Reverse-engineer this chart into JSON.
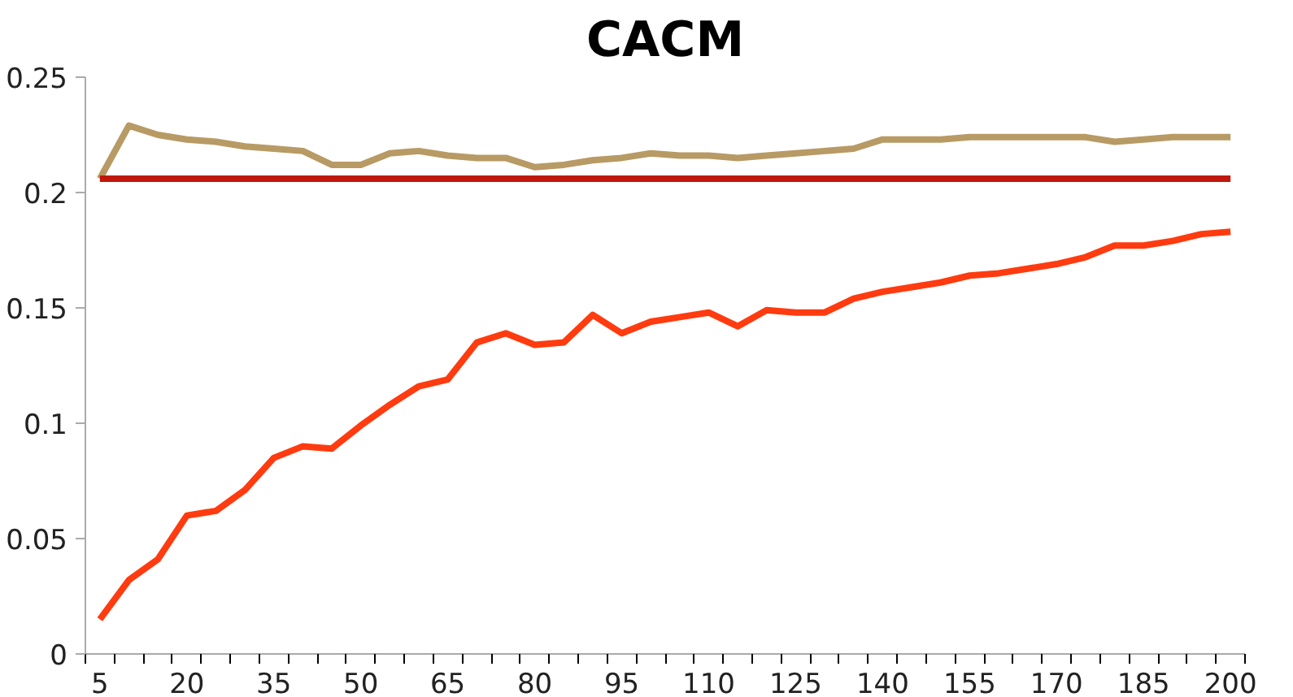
{
  "chart_data": {
    "type": "line",
    "title": "CACM",
    "categories": [
      "5",
      null,
      null,
      "20",
      null,
      null,
      "35",
      null,
      null,
      "50",
      null,
      null,
      "65",
      null,
      null,
      "80",
      null,
      null,
      "95",
      null,
      null,
      "110",
      null,
      null,
      "125",
      null,
      null,
      "140",
      null,
      null,
      "155",
      null,
      null,
      "170",
      null,
      null,
      "185",
      null,
      null,
      "200"
    ],
    "series": [
      {
        "color": "#b89a64",
        "values": [
          0.206,
          0.229,
          0.225,
          0.223,
          0.222,
          0.22,
          0.219,
          0.218,
          0.212,
          0.212,
          0.217,
          0.218,
          0.216,
          0.215,
          0.215,
          0.211,
          0.212,
          0.214,
          0.215,
          0.217,
          0.216,
          0.216,
          0.215,
          0.216,
          0.217,
          0.218,
          0.219,
          0.223,
          0.223,
          0.223,
          0.224,
          0.224,
          0.224,
          0.224,
          0.224,
          0.222,
          0.223,
          0.224,
          0.224,
          0.224
        ]
      },
      {
        "color": "#c0180c",
        "values": [
          0.206,
          0.206,
          0.206,
          0.206,
          0.206,
          0.206,
          0.206,
          0.206,
          0.206,
          0.206,
          0.206,
          0.206,
          0.206,
          0.206,
          0.206,
          0.206,
          0.206,
          0.206,
          0.206,
          0.206,
          0.206,
          0.206,
          0.206,
          0.206,
          0.206,
          0.206,
          0.206,
          0.206,
          0.206,
          0.206,
          0.206,
          0.206,
          0.206,
          0.206,
          0.206,
          0.206,
          0.206,
          0.206,
          0.206,
          0.206
        ]
      },
      {
        "color": "#ff3b0f",
        "values": [
          0.015,
          0.032,
          0.041,
          0.06,
          0.062,
          0.071,
          0.085,
          0.09,
          0.089,
          0.099,
          0.108,
          0.116,
          0.119,
          0.135,
          0.139,
          0.134,
          0.135,
          0.147,
          0.139,
          0.144,
          0.146,
          0.148,
          0.142,
          0.149,
          0.148,
          0.148,
          0.154,
          0.157,
          0.159,
          0.161,
          0.164,
          0.165,
          0.167,
          0.169,
          0.172,
          0.177,
          0.177,
          0.179,
          0.182,
          0.183
        ]
      }
    ],
    "ylim": [
      0,
      0.25
    ],
    "yticks": [
      0,
      0.05,
      0.1,
      0.15,
      0.2,
      0.25
    ],
    "grid": false,
    "marker": "none",
    "line_style": "solid"
  }
}
